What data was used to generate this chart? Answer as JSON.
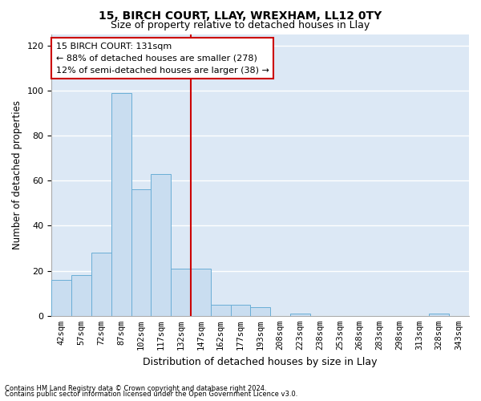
{
  "title1": "15, BIRCH COURT, LLAY, WREXHAM, LL12 0TY",
  "title2": "Size of property relative to detached houses in Llay",
  "xlabel": "Distribution of detached houses by size in Llay",
  "ylabel": "Number of detached properties",
  "bar_labels": [
    "42sqm",
    "57sqm",
    "72sqm",
    "87sqm",
    "102sqm",
    "117sqm",
    "132sqm",
    "147sqm",
    "162sqm",
    "177sqm",
    "193sqm",
    "208sqm",
    "223sqm",
    "238sqm",
    "253sqm",
    "268sqm",
    "283sqm",
    "298sqm",
    "313sqm",
    "328sqm",
    "343sqm"
  ],
  "bar_values": [
    16,
    18,
    28,
    99,
    56,
    63,
    21,
    21,
    5,
    5,
    4,
    0,
    1,
    0,
    0,
    0,
    0,
    0,
    0,
    1,
    0
  ],
  "bar_color": "#c9ddf0",
  "bar_edge_color": "#6aaed6",
  "red_line_index": 6,
  "annotation_text": "15 BIRCH COURT: 131sqm\n← 88% of detached houses are smaller (278)\n12% of semi-detached houses are larger (38) →",
  "annotation_box_color": "#ffffff",
  "annotation_box_edge_color": "#cc0000",
  "ylim": [
    0,
    125
  ],
  "yticks": [
    0,
    20,
    40,
    60,
    80,
    100,
    120
  ],
  "footnote1": "Contains HM Land Registry data © Crown copyright and database right 2024.",
  "footnote2": "Contains public sector information licensed under the Open Government Licence v3.0.",
  "fig_bg_color": "#ffffff",
  "plot_bg_color": "#dce8f5"
}
